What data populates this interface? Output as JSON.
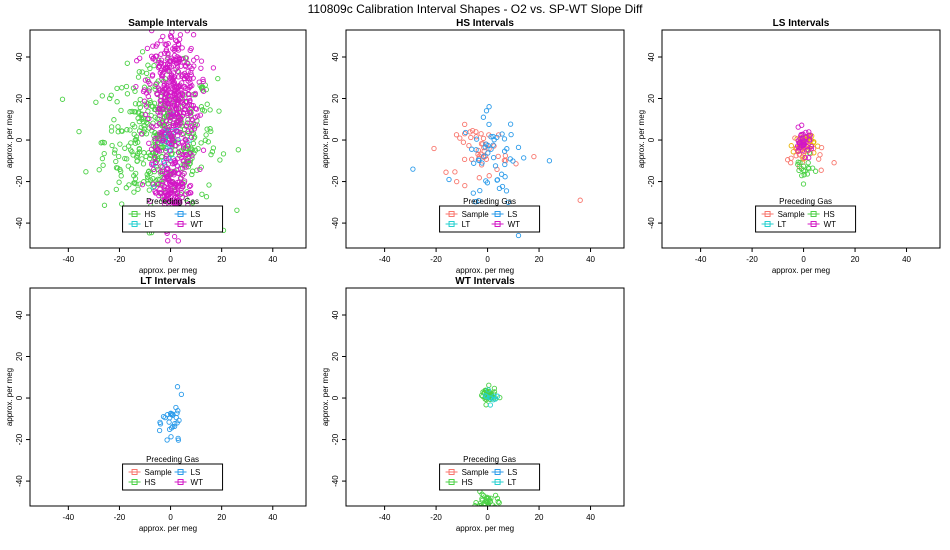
{
  "page_title": "110809c   Calibration Interval Shapes - O2 vs. SP-WT Slope Diff",
  "colors": {
    "Sample": "#f8766d",
    "HS": "#4bd145",
    "LS": "#2b9bea",
    "LT": "#25d0d0",
    "WT": "#d317c6"
  },
  "chart_data": [
    {
      "type": "scatter",
      "title": "Sample Intervals",
      "xlabel": "approx. per meg",
      "ylabel": "approx. per meg",
      "xlim": [
        -55,
        53
      ],
      "ylim": [
        -52,
        53
      ],
      "xticks": [
        -40,
        -20,
        0,
        20,
        40
      ],
      "yticks": [
        -40,
        -20,
        0,
        20,
        40
      ],
      "legend": {
        "title": "Preceding Gas",
        "position": "bottom-center",
        "entries": [
          "HS",
          "LS",
          "LT",
          "WT"
        ]
      },
      "series": [
        {
          "name": "HS",
          "clouds": [
            {
              "cx": -4,
              "cy": 0,
              "sx": 11,
              "sy": 17,
              "n": 430
            }
          ]
        },
        {
          "name": "LS",
          "clouds": [
            {
              "cx": 0,
              "cy": -5,
              "sx": 3,
              "sy": 7,
              "n": 12
            }
          ]
        },
        {
          "name": "LT",
          "clouds": [
            {
              "cx": 0,
              "cy": -5,
              "sx": 3,
              "sy": 7,
              "n": 10
            }
          ]
        },
        {
          "name": "WT",
          "clouds": [
            {
              "cx": 1,
              "cy": 22,
              "sx": 5,
              "sy": 16,
              "n": 420
            },
            {
              "cx": 1,
              "cy": -25,
              "sx": 4,
              "sy": 9,
              "n": 180
            }
          ]
        }
      ]
    },
    {
      "type": "scatter",
      "title": "HS Intervals",
      "xlabel": "approx. per meg",
      "ylabel": "approx. per meg",
      "xlim": [
        -55,
        53
      ],
      "ylim": [
        -52,
        53
      ],
      "xticks": [
        -40,
        -20,
        0,
        20,
        40
      ],
      "yticks": [
        -40,
        -20,
        0,
        20,
        40
      ],
      "legend": {
        "title": "Preceding Gas",
        "position": "bottom-center",
        "entries": [
          "Sample",
          "LS",
          "LT",
          "WT"
        ]
      },
      "series": [
        {
          "name": "Sample",
          "clouds": [
            {
              "cx": -2,
              "cy": -5,
              "sx": 5,
              "sy": 6,
              "n": 45
            }
          ],
          "extra": [
            [
              36,
              -29
            ],
            [
              18,
              -8
            ],
            [
              -12,
              -20
            ]
          ]
        },
        {
          "name": "LS",
          "clouds": [
            {
              "cx": 2,
              "cy": -8,
              "sx": 6,
              "sy": 10,
              "n": 50
            }
          ],
          "extra": [
            [
              -29,
              -14
            ],
            [
              -15,
              -19
            ],
            [
              12,
              -46
            ],
            [
              -5,
              -33
            ],
            [
              8,
              -30
            ],
            [
              24,
              -10
            ]
          ]
        },
        {
          "name": "LT",
          "clouds": []
        },
        {
          "name": "WT",
          "clouds": []
        }
      ]
    },
    {
      "type": "scatter",
      "title": "LS Intervals",
      "xlabel": "approx. per meg",
      "ylabel": "approx. per meg",
      "xlim": [
        -55,
        53
      ],
      "ylim": [
        -52,
        53
      ],
      "xticks": [
        -40,
        -20,
        0,
        20,
        40
      ],
      "yticks": [
        -40,
        -20,
        0,
        20,
        40
      ],
      "legend": {
        "title": "Preceding Gas",
        "position": "bottom-center",
        "entries": [
          "Sample",
          "HS",
          "LT",
          "WT"
        ]
      },
      "series": [
        {
          "name": "Sample",
          "clouds": [
            {
              "cx": 1,
              "cy": -8,
              "sx": 4,
              "sy": 4,
              "n": 25
            }
          ]
        },
        {
          "name": "HS",
          "clouds": [
            {
              "cx": 0,
              "cy": -14,
              "sx": 2,
              "sy": 3,
              "n": 18
            }
          ]
        },
        {
          "name": "LT",
          "clouds": []
        },
        {
          "name": "WT",
          "clouds": [
            {
              "cx": 0,
              "cy": -1,
              "sx": 1.8,
              "sy": 3,
              "n": 40
            }
          ]
        }
      ],
      "extra_series": {
        "name": "",
        "color": "#e8b400",
        "clouds": [
          {
            "cx": 0,
            "cy": -2,
            "sx": 2,
            "sy": 3,
            "n": 40
          }
        ]
      }
    },
    {
      "type": "scatter",
      "title": "LT Intervals",
      "xlabel": "approx. per meg",
      "ylabel": "approx. per meg",
      "xlim": [
        -55,
        53
      ],
      "ylim": [
        -52,
        53
      ],
      "xticks": [
        -40,
        -20,
        0,
        20,
        40
      ],
      "yticks": [
        -40,
        -20,
        0,
        20,
        40
      ],
      "legend": {
        "title": "Preceding Gas",
        "position": "bottom-center",
        "entries": [
          "Sample",
          "LS",
          "HS",
          "WT"
        ]
      },
      "series": [
        {
          "name": "Sample",
          "clouds": []
        },
        {
          "name": "LS",
          "clouds": [
            {
              "cx": 1,
              "cy": -12,
              "sx": 2,
              "sy": 6,
              "n": 30
            }
          ]
        },
        {
          "name": "HS",
          "clouds": []
        },
        {
          "name": "WT",
          "clouds": []
        }
      ]
    },
    {
      "type": "scatter",
      "title": "WT Intervals",
      "xlabel": "approx. per meg",
      "ylabel": "approx. per meg",
      "xlim": [
        -55,
        53
      ],
      "ylim": [
        -52,
        53
      ],
      "xticks": [
        -40,
        -20,
        0,
        20,
        40
      ],
      "yticks": [
        -40,
        -20,
        0,
        20,
        40
      ],
      "legend": {
        "title": "Preceding Gas",
        "position": "bottom-center",
        "entries": [
          "Sample",
          "LS",
          "HS",
          "LT"
        ]
      },
      "series": [
        {
          "name": "Sample",
          "clouds": []
        },
        {
          "name": "LS",
          "clouds": []
        },
        {
          "name": "HS",
          "clouds": [
            {
              "cx": 0,
              "cy": 1,
              "sx": 1.6,
              "sy": 2,
              "n": 40
            },
            {
              "cx": 0,
              "cy": -50,
              "sx": 2,
              "sy": 2,
              "n": 35
            }
          ]
        },
        {
          "name": "LT",
          "clouds": [
            {
              "cx": 1,
              "cy": 0,
              "sx": 1.5,
              "sy": 1.5,
              "n": 10
            }
          ]
        }
      ]
    }
  ]
}
